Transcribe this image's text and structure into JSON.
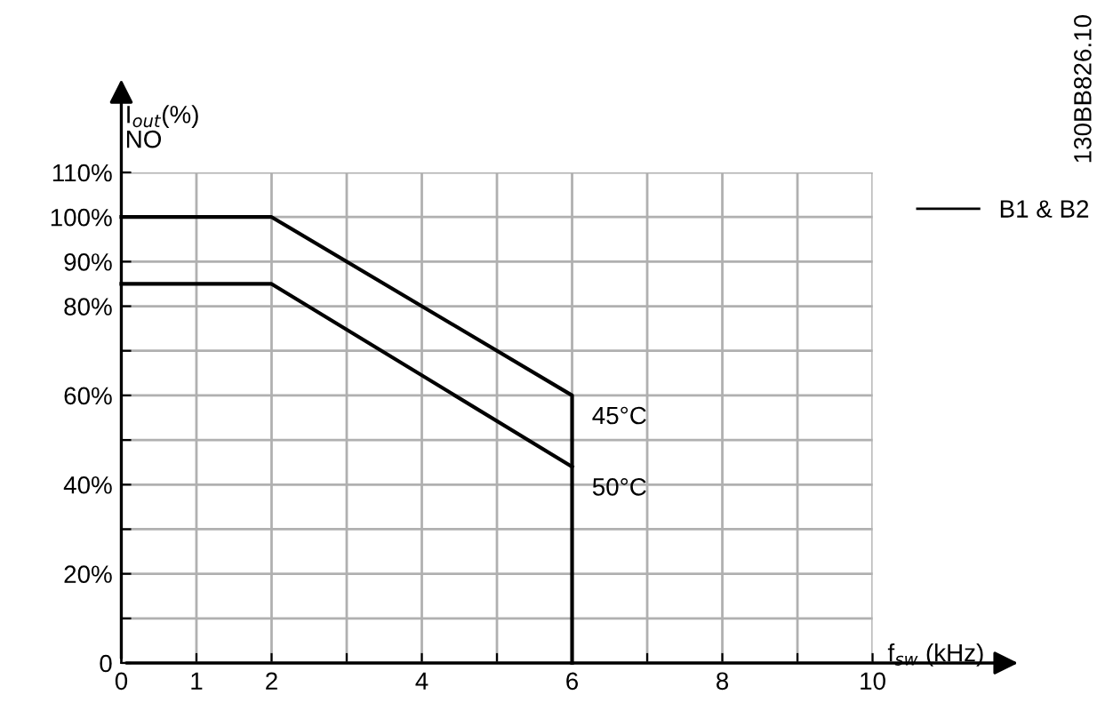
{
  "chart_data": {
    "type": "line",
    "xlabel": "f$_{sw}$ (kHz)",
    "ylabel": "I$_{out}$(%)",
    "annotations": [
      "NO",
      "B1 & B2",
      "130BB826.10"
    ],
    "xlim": [
      0,
      10
    ],
    "ylim": [
      0,
      110
    ],
    "xticks": [
      0,
      1,
      2,
      {
        "value": 3,
        "label": null
      },
      4,
      {
        "value": 5,
        "label": null
      },
      6,
      {
        "value": 7,
        "label": null
      },
      8,
      {
        "value": 9,
        "label": null
      },
      10
    ],
    "yticks": [
      {
        "value": 0,
        "label": "0"
      },
      {
        "value": 10,
        "label": null
      },
      {
        "value": 20,
        "label": "20%"
      },
      {
        "value": 30,
        "label": null
      },
      {
        "value": 40,
        "label": "40%"
      },
      {
        "value": 50,
        "label": null
      },
      {
        "value": 60,
        "label": "60%"
      },
      {
        "value": 70,
        "label": null
      },
      {
        "value": 80,
        "label": "80%"
      },
      {
        "value": 90,
        "label": "90%"
      },
      {
        "value": 100,
        "label": "100%"
      },
      {
        "value": 110,
        "label": "110%"
      }
    ],
    "grid": true,
    "marker": "none",
    "line_style": "solid",
    "series": [
      {
        "name": "45°C",
        "color": "#000000",
        "x": [
          0,
          2,
          6,
          6
        ],
        "values": [
          100,
          100,
          60,
          0
        ]
      },
      {
        "name": "50°C",
        "color": "#000000",
        "x": [
          0,
          2,
          6
        ],
        "values": [
          85,
          85,
          44
        ]
      }
    ]
  }
}
